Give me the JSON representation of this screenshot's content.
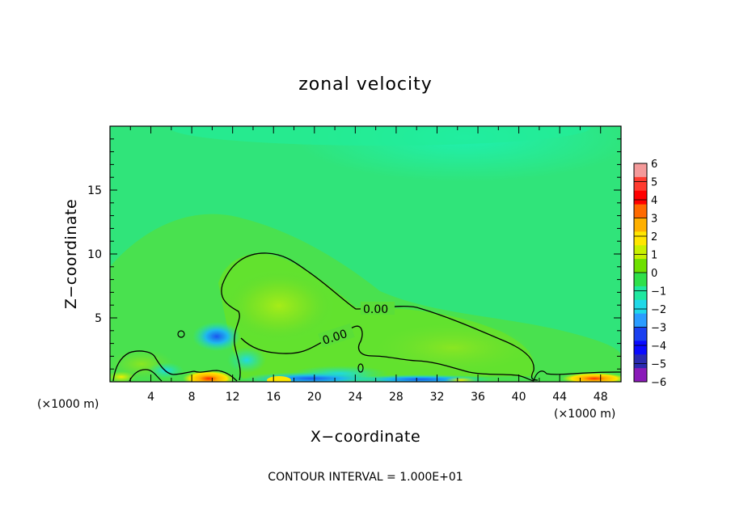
{
  "chart_data": {
    "type": "heatmap",
    "title": "zonal velocity",
    "xlabel": "X−coordinate",
    "ylabel": "Z−coordinate",
    "x_units": "(×1000 m)",
    "xlim": [
      0,
      50
    ],
    "ylim": [
      0,
      20
    ],
    "x_ticks": [
      4,
      8,
      12,
      16,
      20,
      24,
      28,
      32,
      36,
      40,
      44,
      48
    ],
    "x_tick_labels": [
      "4",
      "8",
      "12",
      "16",
      "20",
      "24",
      "28",
      "32",
      "36",
      "40",
      "44",
      "48"
    ],
    "y_ticks": [
      5,
      10,
      15
    ],
    "y_tick_labels": [
      "5",
      "10",
      "15"
    ],
    "colorbar": {
      "levels": [
        6,
        5,
        4,
        3,
        2,
        1,
        0,
        -1,
        -2,
        -3,
        -4,
        -5,
        -6
      ],
      "labels": [
        "6",
        "5",
        "4",
        "3",
        "2",
        "1",
        "0",
        "−1",
        "−2",
        "−3",
        "−4",
        "−5",
        "−6"
      ],
      "colors": [
        "#f49a9a",
        "#ff3b2f",
        "#ff0000",
        "#ff6a00",
        "#ffb000",
        "#ffe600",
        "#c8f000",
        "#6ee000",
        "#2fe04a",
        "#1fe8a0",
        "#1fd8e8",
        "#2a9cff",
        "#1a40f0",
        "#0a0aff",
        "#2a2ab0",
        "#8a1ab8"
      ]
    },
    "contour_labels": [
      {
        "text": "0.00",
        "x": 25.8,
        "z": 5.6
      },
      {
        "text": "0.00",
        "x": 22.2,
        "z": 3.1
      }
    ],
    "contour_interval_note": "CONTOUR INTERVAL = 1.000E+01"
  },
  "colors": {
    "background_field": "#30e47a",
    "positive_region": "#55e23c",
    "upper_negative": "#1ef0b0"
  }
}
